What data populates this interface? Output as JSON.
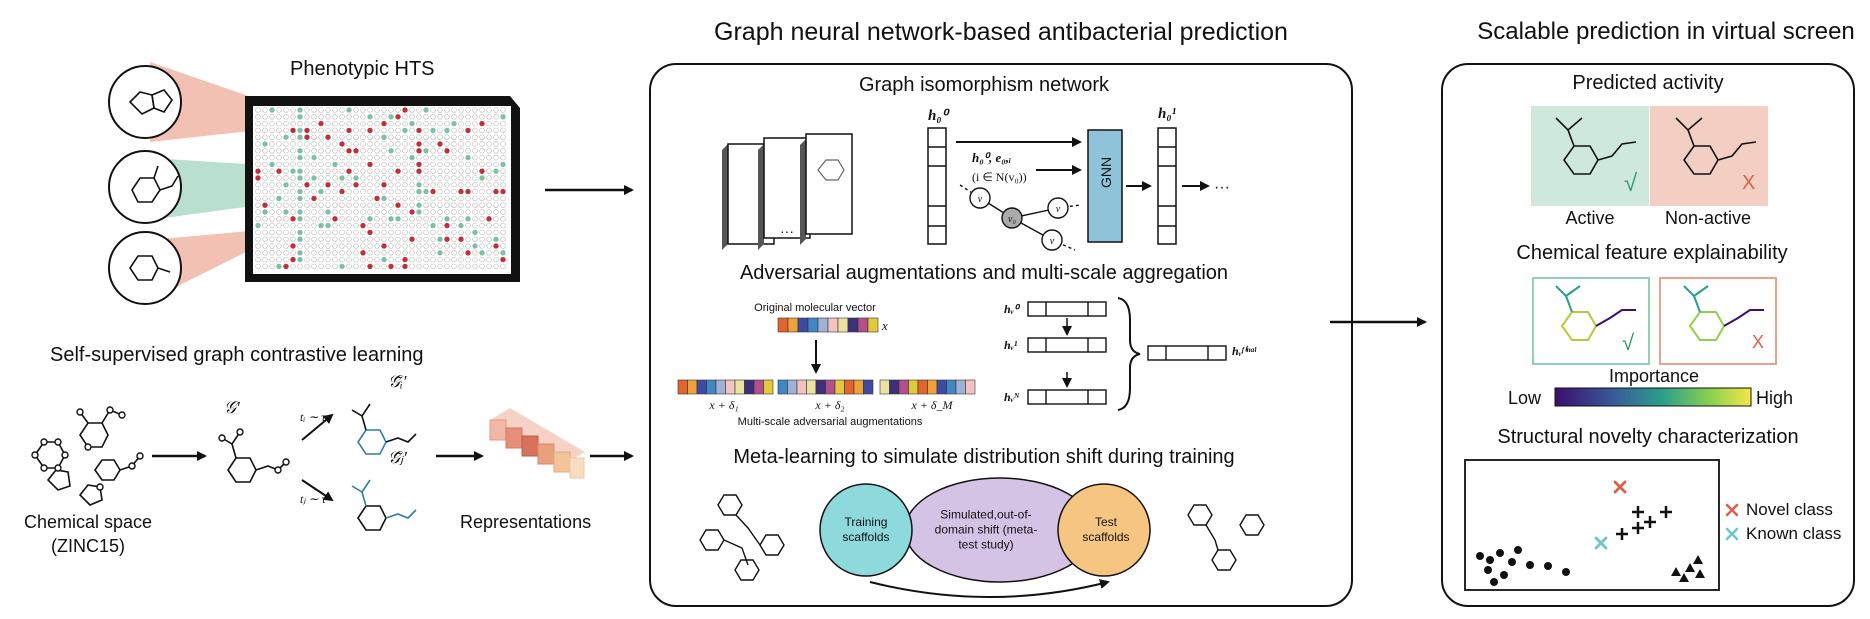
{
  "left": {
    "hts_title": "Phenotypic HTS",
    "contrastive_title": "Self-supervised graph contrastive learning",
    "chemical_space": "Chemical space",
    "zinc": "(ZINC15)",
    "representations": "Representations",
    "g_prime": "𝒢′",
    "g_tilde_i": "𝒢̃ᵢ′",
    "g_tilde_j": "𝒢̃ⱼ′",
    "t_i": "tᵢ ∼ τ",
    "t_j": "tⱼ ∼ τ"
  },
  "middle": {
    "title": "Graph neural network-based antibacterial prediction",
    "gin_title": "Graph isomorphism network",
    "gnn_label": "GNN",
    "h0_left": "h₀⁰",
    "h0_right": "h₀¹",
    "h_e_label": "h₀⁰, e₀,ᵢ",
    "neighbors": "(i ∈ N(v₀))",
    "adv_title": "Adversarial augmentations and multi-scale aggregation",
    "orig_vector": "Original molecular vector",
    "x_label": "x",
    "aug1": "x + δ₁",
    "aug2": "x + δ₂",
    "augM": "x + δ_M",
    "multiscale_label": "Multi-scale adversarial augmentations",
    "hv0": "hᵥ⁰",
    "hv1": "hᵥ¹",
    "hvN": "hᵥᴺ",
    "hfinal": "hᵥᶠⁱⁿᵃˡ",
    "meta_title": "Meta-learning to simulate distribution shift during training",
    "venn_training": "Training scaffolds",
    "venn_simulated": "Simulated,out-of-domain shift (meta-test study)",
    "venn_test": "Test scaffolds"
  },
  "right": {
    "title": "Scalable prediction in virtual screen",
    "predicted_title": "Predicted activity",
    "active": "Active",
    "nonactive": "Non-active",
    "check": "√",
    "cross": "X",
    "explain_title": "Chemical feature explainability",
    "importance": "Importance",
    "low": "Low",
    "high": "High",
    "novelty_title": "Structural novelty characterization",
    "novel_class": "Novel class",
    "known_class": "Known class"
  },
  "colors": {
    "active_bg": "#cfe8dc",
    "nonactive_bg": "#f2cfc2",
    "hit_red": "#c0303a",
    "hit_green": "#7fbfa6",
    "gnn_blue": "#8fc3d9",
    "venn_teal": "#8ed9dc",
    "venn_purple": "#d5c3e5",
    "venn_orange": "#f7c582",
    "novel_x": "#d9604a",
    "known_x": "#6cc8c8"
  }
}
